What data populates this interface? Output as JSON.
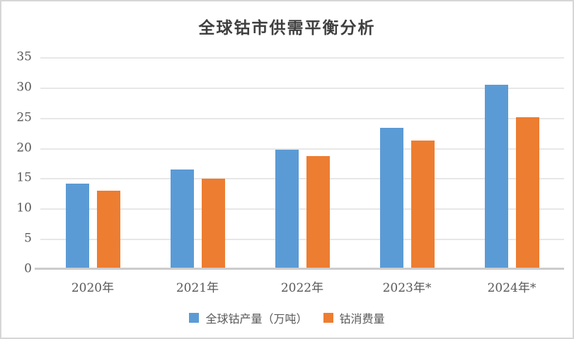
{
  "title": "全球钴市供需平衡分析",
  "chart_data": {
    "type": "bar",
    "title": "全球钴市供需平衡分析",
    "categories": [
      "2020年",
      "2021年",
      "2022年",
      "2023年*",
      "2024年*"
    ],
    "series": [
      {
        "name": "全球钴产量（万吨）",
        "color": "#5B9BD5",
        "values": [
          14.1,
          16.5,
          19.7,
          23.3,
          30.4
        ]
      },
      {
        "name": "钴消费量",
        "color": "#ED7D31",
        "values": [
          13.0,
          14.9,
          18.7,
          21.2,
          25.1
        ]
      }
    ],
    "xlabel": "",
    "ylabel": "",
    "ylim": [
      0,
      35
    ],
    "y_ticks": [
      0,
      5,
      10,
      15,
      20,
      25,
      30,
      35
    ],
    "grid": true,
    "legend_position": "bottom"
  },
  "colors": {
    "grid": "#e7e7e7",
    "axis_line": "#cccccc",
    "tick_text": "#595959",
    "title_text": "#3f3f3f",
    "frame_border": "#d6d6d6",
    "background": "#ffffff"
  }
}
